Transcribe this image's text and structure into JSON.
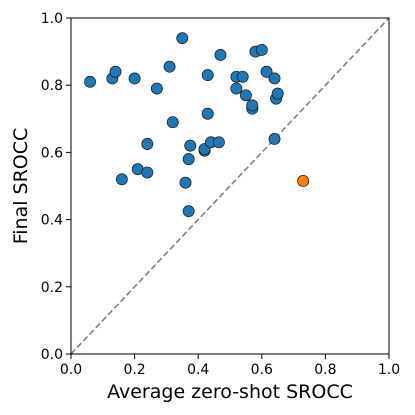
{
  "chart_data": {
    "type": "scatter",
    "xlabel": "Average zero-shot SROCC",
    "ylabel": "Final SROCC",
    "xlim": [
      0.0,
      1.0
    ],
    "ylim": [
      0.0,
      1.0
    ],
    "xticks": [
      "0.0",
      "0.2",
      "0.4",
      "0.6",
      "0.8",
      "1.0"
    ],
    "yticks": [
      "0.0",
      "0.2",
      "0.4",
      "0.6",
      "0.8",
      "1.0"
    ],
    "grid": false,
    "reference_line": {
      "style": "dashed",
      "from": [
        0.0,
        0.0
      ],
      "to": [
        1.0,
        1.0
      ],
      "color": "#808080"
    },
    "series": [
      {
        "color": "#1f77b4",
        "points": [
          [
            0.06,
            0.81
          ],
          [
            0.13,
            0.82
          ],
          [
            0.14,
            0.84
          ],
          [
            0.16,
            0.52
          ],
          [
            0.2,
            0.82
          ],
          [
            0.21,
            0.55
          ],
          [
            0.24,
            0.54
          ],
          [
            0.24,
            0.625
          ],
          [
            0.27,
            0.79
          ],
          [
            0.31,
            0.855
          ],
          [
            0.32,
            0.69
          ],
          [
            0.35,
            0.94
          ],
          [
            0.36,
            0.51
          ],
          [
            0.37,
            0.58
          ],
          [
            0.37,
            0.425
          ],
          [
            0.375,
            0.62
          ],
          [
            0.42,
            0.605
          ],
          [
            0.42,
            0.61
          ],
          [
            0.43,
            0.83
          ],
          [
            0.43,
            0.715
          ],
          [
            0.44,
            0.63
          ],
          [
            0.465,
            0.63
          ],
          [
            0.47,
            0.89
          ],
          [
            0.52,
            0.825
          ],
          [
            0.52,
            0.79
          ],
          [
            0.54,
            0.825
          ],
          [
            0.55,
            0.77
          ],
          [
            0.57,
            0.735
          ],
          [
            0.57,
            0.73
          ],
          [
            0.58,
            0.9
          ],
          [
            0.6,
            0.905
          ],
          [
            0.615,
            0.84
          ],
          [
            0.64,
            0.64
          ],
          [
            0.64,
            0.82
          ],
          [
            0.645,
            0.76
          ],
          [
            0.65,
            0.775
          ],
          [
            0.57,
            0.74
          ]
        ]
      },
      {
        "color": "#ff7f0e",
        "points": [
          [
            0.73,
            0.515
          ]
        ]
      }
    ]
  }
}
